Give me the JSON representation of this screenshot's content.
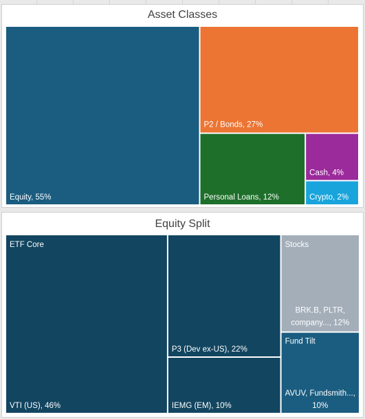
{
  "chart_data": [
    {
      "type": "treemap",
      "title": "Asset Classes",
      "items": [
        {
          "label": "Equity, 55%",
          "name": "Equity",
          "value": 55,
          "color": "#1a5d80"
        },
        {
          "label": "P2 / Bonds, 27%",
          "name": "P2 / Bonds",
          "value": 27,
          "color": "#ec7533"
        },
        {
          "label": "Personal Loans, 12%",
          "name": "Personal Loans",
          "value": 12,
          "color": "#1e6f2a"
        },
        {
          "label": "Cash, 4%",
          "name": "Cash",
          "value": 4,
          "color": "#9b2a9b"
        },
        {
          "label": "Crypto, 2%",
          "name": "Crypto",
          "value": 2,
          "color": "#19a4dc"
        }
      ]
    },
    {
      "type": "treemap",
      "title": "Equity Split",
      "groups": [
        {
          "name": "ETF Core",
          "items": [
            {
              "label": "VTI (US), 46%",
              "name": "VTI (US)",
              "value": 46,
              "color": "#124560"
            },
            {
              "label": "P3 (Dev ex-US), 22%",
              "name": "P3 (Dev ex-US)",
              "value": 22,
              "color": "#124560"
            },
            {
              "label": "IEMG (EM), 10%",
              "name": "IEMG (EM)",
              "value": 10,
              "color": "#124560"
            }
          ]
        },
        {
          "name": "Stocks",
          "items": [
            {
              "label": [
                "BRK.B, PLTR,",
                "company..., 12%"
              ],
              "name": "BRK.B, PLTR, company...",
              "value": 12,
              "color": "#a3aeb9"
            }
          ]
        },
        {
          "name": "Fund Tilt",
          "items": [
            {
              "label": [
                "AVUV, Fundsmith...,",
                "10%"
              ],
              "name": "AVUV, Fundsmith...",
              "value": 10,
              "color": "#1a5d80"
            }
          ]
        }
      ]
    }
  ]
}
